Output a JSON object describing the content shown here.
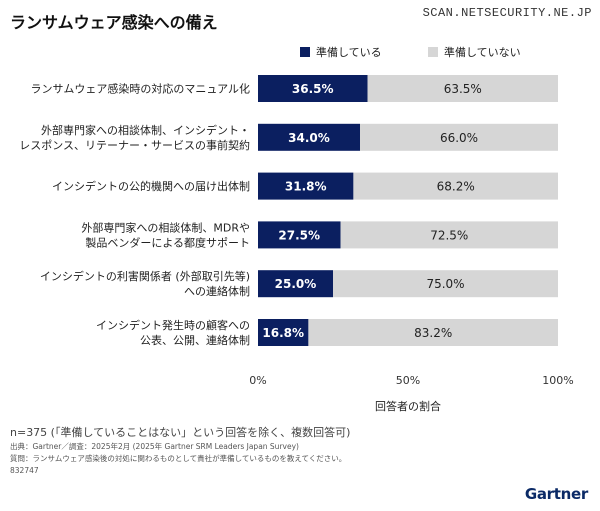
{
  "title": "ランサムウェア感染への備え",
  "watermark": "SCAN.NETSECURITY.NE.JP",
  "colors": {
    "ready": "#0b1f60",
    "not_ready": "#d6d6d6"
  },
  "chart_data": {
    "type": "bar",
    "orientation": "horizontal",
    "stacked": true,
    "categories": [
      [
        "ランサムウェア感染時の対応のマニュアル化"
      ],
      [
        "外部専門家への相談体制、インシデント・",
        "レスポンス、リテーナー・サービスの事前契約"
      ],
      [
        "インシデントの公的機関への届け出体制"
      ],
      [
        "外部専門家への相談体制、MDRや",
        "製品ベンダーによる都度サポート"
      ],
      [
        "インシデントの利害関係者 (外部取引先等)",
        "への連絡体制"
      ],
      [
        "インシデント発生時の顧客への",
        "公表、公開、連絡体制"
      ]
    ],
    "series": [
      {
        "name": "準備している",
        "values": [
          36.5,
          34.0,
          31.8,
          27.5,
          25.0,
          16.8
        ]
      },
      {
        "name": "準備していない",
        "values": [
          63.5,
          66.0,
          68.2,
          72.5,
          75.0,
          83.2
        ]
      }
    ],
    "value_labels": {
      "series0": [
        "36.5%",
        "34.0%",
        "31.8%",
        "27.5%",
        "25.0%",
        "16.8%"
      ],
      "series1": [
        "63.5%",
        "66.0%",
        "68.2%",
        "72.5%",
        "75.0%",
        "83.2%"
      ]
    },
    "xlim": [
      0,
      100
    ],
    "xticks": [
      0,
      50,
      100
    ],
    "xtick_labels": [
      "0%",
      "50%",
      "100%"
    ],
    "xlabel": "回答者の割合",
    "legend_position": "top"
  },
  "notes": {
    "n": "n=375 (「準備していることはない」という回答を除く、複数回答可)",
    "source": "出典：Gartner／調査：2025年2月 (2025年 Gartner SRM Leaders Japan Survey)",
    "question": "質問：ランサムウェア感染後の対処に関わるものとして貴社が準備しているものを教えてください。",
    "id": "832747"
  },
  "logo": "Gartner"
}
